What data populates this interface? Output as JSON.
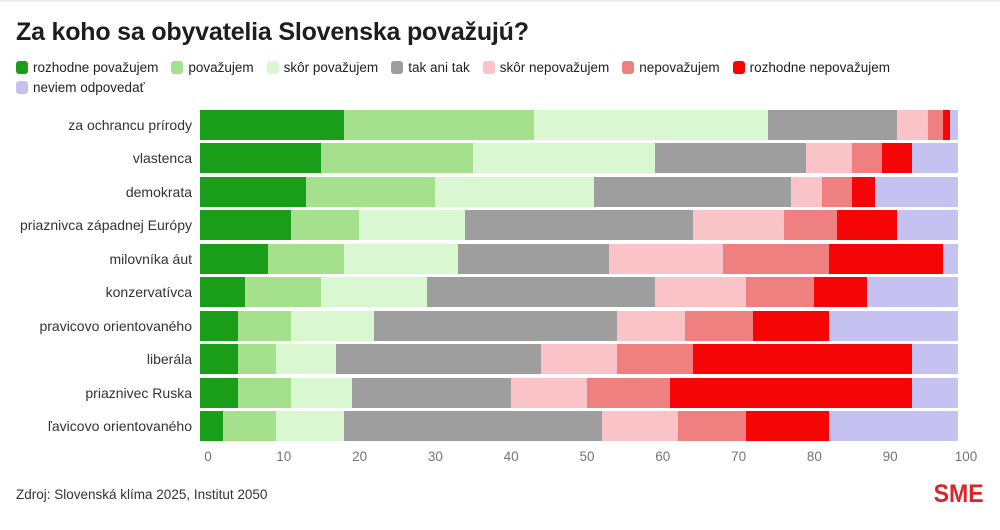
{
  "page": {
    "title": "Za koho sa obyvatelia Slovenska považujú?",
    "source": "Zdroj: Slovenská klíma 2025, Institut 2050",
    "brand": "SME",
    "brand_color": "#d4282d"
  },
  "chart_data": {
    "type": "bar",
    "orientation": "horizontal",
    "stacked": true,
    "title": "Za koho sa obyvatelia Slovenska považujú?",
    "legend_position": "top",
    "grid": false,
    "xlabel": "",
    "ylabel": "",
    "xlim": [
      0,
      100
    ],
    "x_ticks": [
      0,
      10,
      20,
      30,
      40,
      50,
      60,
      70,
      80,
      90,
      100
    ],
    "categories": [
      "za ochrancu prírody",
      "vlastenca",
      "demokrata",
      "priaznivca západnej Európy",
      "milovníka áut",
      "konzervatívca",
      "pravicovo orientovaného",
      "liberála",
      "priaznivec Ruska",
      "ľavicovo orientovaného"
    ],
    "series": [
      {
        "name": "rozhodne považujem",
        "color": "#1a9e1a",
        "values": [
          19,
          16,
          14,
          12,
          9,
          6,
          5,
          5,
          5,
          3
        ]
      },
      {
        "name": "považujem",
        "color": "#a5e08c",
        "values": [
          25,
          20,
          17,
          9,
          10,
          10,
          7,
          5,
          7,
          7
        ]
      },
      {
        "name": "skôr považujem",
        "color": "#d9f7d0",
        "values": [
          31,
          24,
          21,
          14,
          15,
          14,
          11,
          8,
          8,
          9
        ]
      },
      {
        "name": "tak ani tak",
        "color": "#9e9e9e",
        "values": [
          17,
          20,
          26,
          30,
          20,
          30,
          32,
          27,
          21,
          34
        ]
      },
      {
        "name": "skôr nepovažujem",
        "color": "#fac3c8",
        "values": [
          4,
          6,
          4,
          12,
          15,
          12,
          9,
          10,
          10,
          10
        ]
      },
      {
        "name": "nepovažujem",
        "color": "#ee8080",
        "values": [
          2,
          4,
          4,
          7,
          14,
          9,
          9,
          10,
          11,
          9
        ]
      },
      {
        "name": "rozhodne nepovažujem",
        "color": "#f50505",
        "values": [
          1,
          4,
          3,
          8,
          15,
          7,
          10,
          29,
          32,
          11
        ]
      },
      {
        "name": "neviem odpovedať",
        "color": "#c5c2f2",
        "values": [
          1,
          6,
          11,
          8,
          2,
          12,
          17,
          6,
          6,
          17
        ]
      }
    ]
  }
}
